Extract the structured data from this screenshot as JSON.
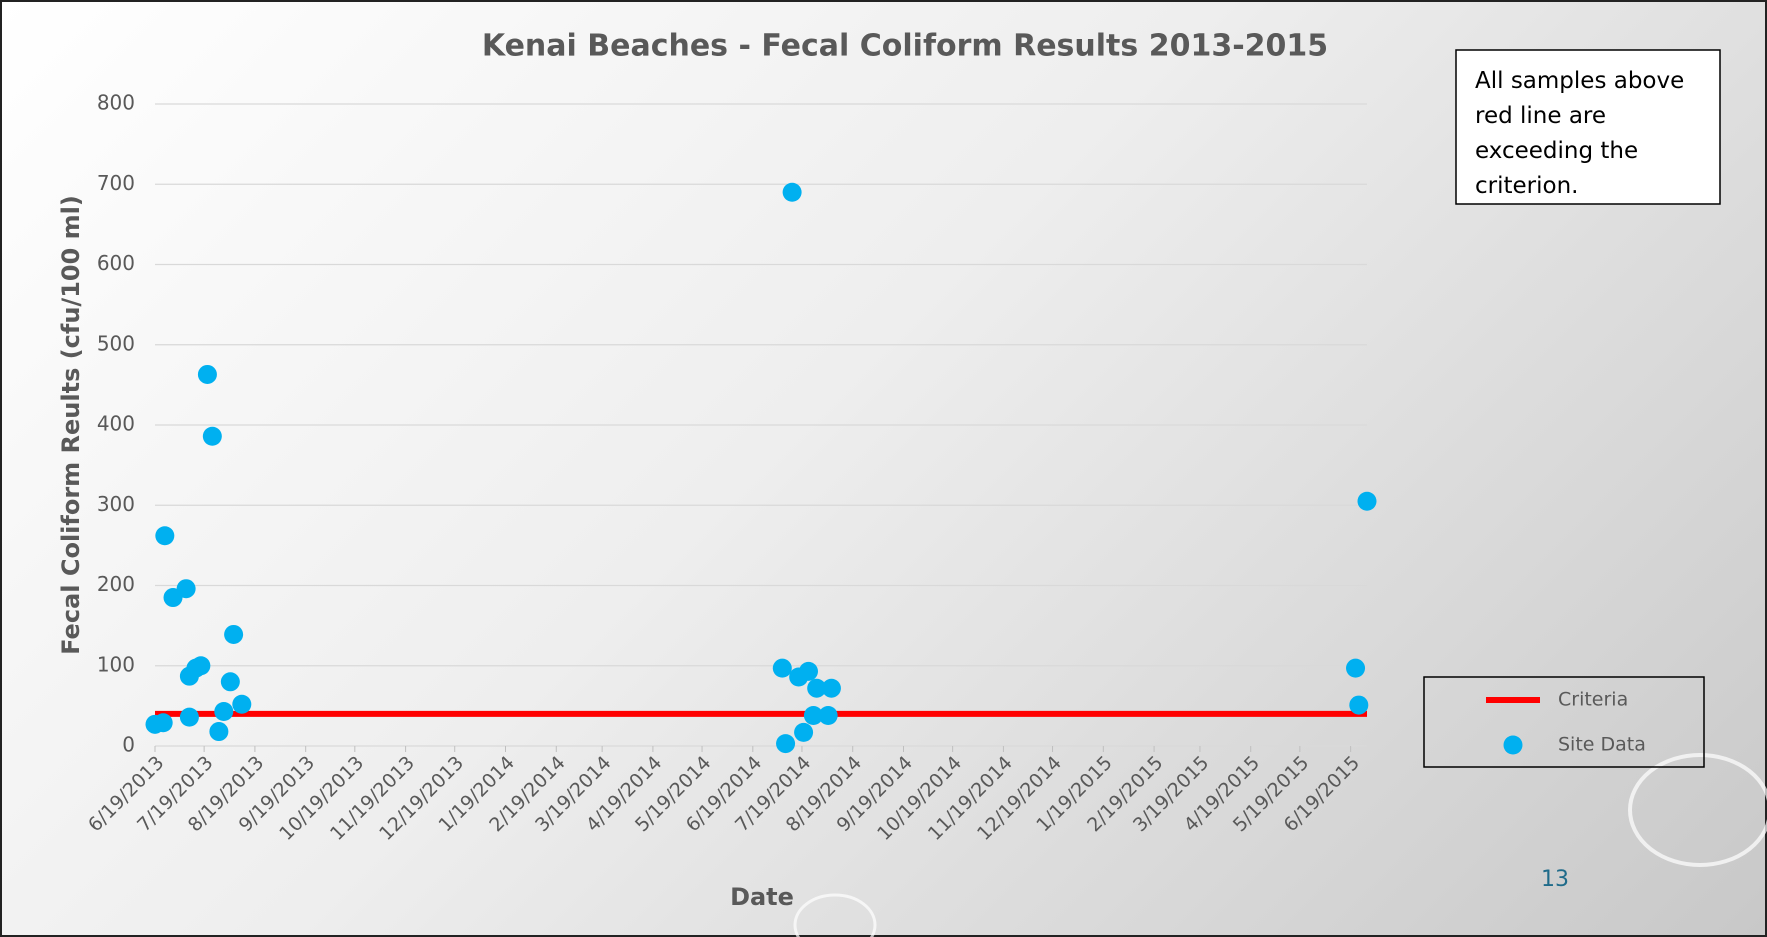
{
  "chart_data": {
    "type": "scatter",
    "title": "Kenai Beaches - Fecal Coliform Results 2013-2015",
    "x_label": "Date",
    "y_label": "Fecal Coliform Reults (cfu/100 ml)",
    "annotation": "All samples above red line are exceeding the criterion.",
    "page_number": "13",
    "xlim": [
      "2013-06-19",
      "2015-06-29"
    ],
    "ylim": [
      0,
      800
    ],
    "yticks": [
      0,
      100,
      200,
      300,
      400,
      500,
      600,
      700,
      800
    ],
    "xticks": [
      {
        "value": "2013-06-19",
        "label": "6/19/2013"
      },
      {
        "value": "2013-07-19",
        "label": "7/19/2013"
      },
      {
        "value": "2013-08-19",
        "label": "8/19/2013"
      },
      {
        "value": "2013-09-19",
        "label": "9/19/2013"
      },
      {
        "value": "2013-10-19",
        "label": "10/19/2013"
      },
      {
        "value": "2013-11-19",
        "label": "11/19/2013"
      },
      {
        "value": "2013-12-19",
        "label": "12/19/2013"
      },
      {
        "value": "2014-01-19",
        "label": "1/19/2014"
      },
      {
        "value": "2014-02-19",
        "label": "2/19/2014"
      },
      {
        "value": "2014-03-19",
        "label": "3/19/2014"
      },
      {
        "value": "2014-04-19",
        "label": "4/19/2014"
      },
      {
        "value": "2014-05-19",
        "label": "5/19/2014"
      },
      {
        "value": "2014-06-19",
        "label": "6/19/2014"
      },
      {
        "value": "2014-07-19",
        "label": "7/19/2014"
      },
      {
        "value": "2014-08-19",
        "label": "8/19/2014"
      },
      {
        "value": "2014-09-19",
        "label": "9/19/2014"
      },
      {
        "value": "2014-10-19",
        "label": "10/19/2014"
      },
      {
        "value": "2014-11-19",
        "label": "11/19/2014"
      },
      {
        "value": "2014-12-19",
        "label": "12/19/2014"
      },
      {
        "value": "2015-01-19",
        "label": "1/19/2015"
      },
      {
        "value": "2015-02-19",
        "label": "2/19/2015"
      },
      {
        "value": "2015-03-19",
        "label": "3/19/2015"
      },
      {
        "value": "2015-04-19",
        "label": "4/19/2015"
      },
      {
        "value": "2015-05-19",
        "label": "5/19/2015"
      },
      {
        "value": "2015-06-19",
        "label": "6/19/2015"
      }
    ],
    "grid": true,
    "legend": "right",
    "series": [
      {
        "name": "Criteria",
        "type": "line",
        "color": "#ff0000",
        "x": [
          "2013-06-19",
          "2015-06-29"
        ],
        "values": [
          40,
          40
        ]
      },
      {
        "name": "Site Data",
        "type": "scatter",
        "color": "#00b0f0",
        "x": [
          "2013-06-19",
          "2013-06-24",
          "2013-06-25",
          "2013-06-30",
          "2013-07-08",
          "2013-07-10",
          "2013-07-10",
          "2013-07-14",
          "2013-07-17",
          "2013-07-21",
          "2013-07-24",
          "2013-07-28",
          "2013-07-31",
          "2013-08-04",
          "2013-08-06",
          "2013-08-11",
          "2014-07-07",
          "2014-07-09",
          "2014-07-13",
          "2014-07-17",
          "2014-07-20",
          "2014-07-23",
          "2014-07-26",
          "2014-07-28",
          "2014-08-04",
          "2014-08-06",
          "2015-06-22",
          "2015-06-24",
          "2015-06-29"
        ],
        "values": [
          27,
          29,
          262,
          185,
          196,
          36,
          87,
          97,
          100,
          463,
          386,
          18,
          43,
          80,
          139,
          52,
          97,
          3,
          690,
          86,
          17,
          93,
          38,
          72,
          38,
          72,
          97,
          51,
          305
        ]
      }
    ]
  }
}
